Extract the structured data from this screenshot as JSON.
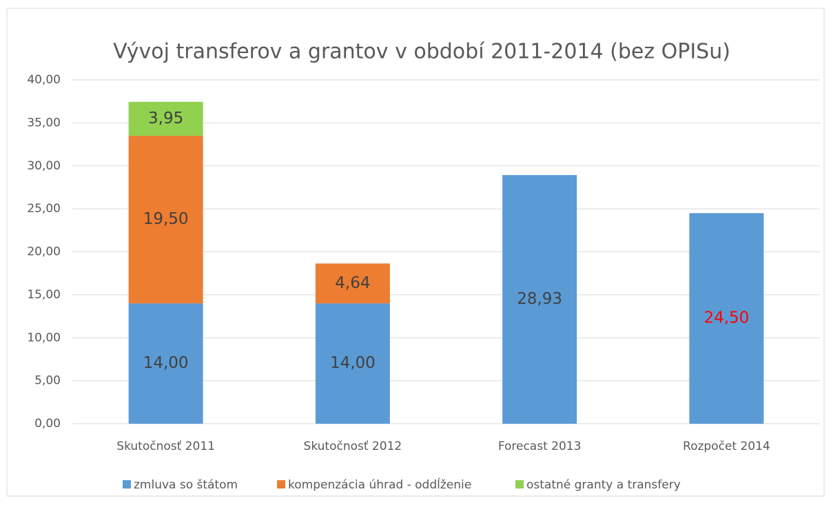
{
  "chart_data": {
    "type": "stacked_bar",
    "title": "Vývoj transferov a grantov v období 2011-2014 (bez OPISu)",
    "categories": [
      "Skutočnosť 2011",
      "Skutočnosť 2012",
      "Forecast 2013",
      "Rozpočet 2014"
    ],
    "series": [
      {
        "name": "zmluva so štátom",
        "color": "#5b9bd5",
        "values": [
          14.0,
          14.0,
          28.93,
          24.5
        ],
        "value_labels": [
          "14,00",
          "14,00",
          "28,93",
          "24,50"
        ],
        "label_colors": [
          "#404040",
          "#404040",
          "#404040",
          "#ff0000"
        ]
      },
      {
        "name": "kompenzácia úhrad - oddĺženie",
        "color": "#ed7d31",
        "values": [
          19.5,
          4.64,
          null,
          null
        ],
        "value_labels": [
          "19,50",
          "4,64",
          null,
          null
        ],
        "label_colors": [
          "#404040",
          "#404040",
          null,
          null
        ]
      },
      {
        "name": "ostatné granty a transfery",
        "color": "#92d050",
        "values": [
          3.95,
          null,
          null,
          null
        ],
        "value_labels": [
          "3,95",
          null,
          null,
          null
        ],
        "label_colors": [
          "#404040",
          null,
          null,
          null
        ]
      }
    ],
    "ylim": [
      0,
      40
    ],
    "yticks": [
      {
        "value": 0,
        "label": "0,00"
      },
      {
        "value": 5,
        "label": "5,00"
      },
      {
        "value": 10,
        "label": "10,00"
      },
      {
        "value": 15,
        "label": "15,00"
      },
      {
        "value": 20,
        "label": "20,00"
      },
      {
        "value": 25,
        "label": "25,00"
      },
      {
        "value": 30,
        "label": "30,00"
      },
      {
        "value": 35,
        "label": "35,00"
      },
      {
        "value": 40,
        "label": "40,00"
      }
    ],
    "grid": true,
    "legend": "bottom"
  }
}
